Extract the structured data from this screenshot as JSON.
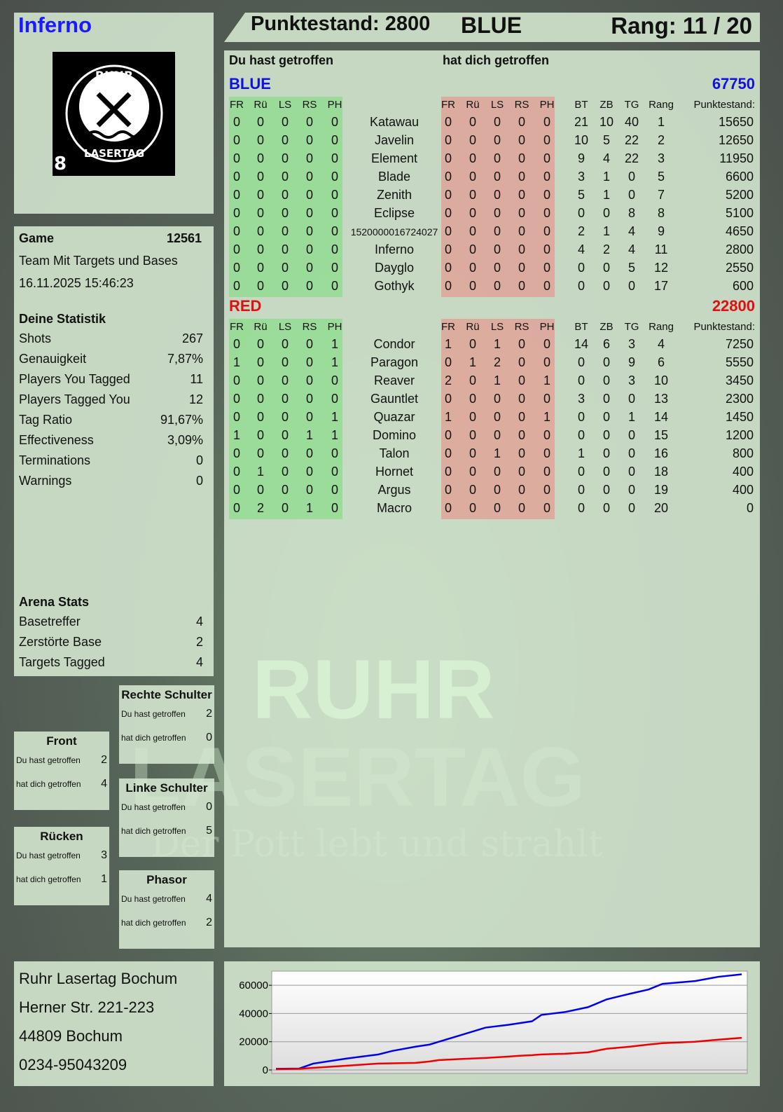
{
  "player": {
    "name": "Inferno",
    "score_label": "Punktestand: 2800",
    "team": "BLUE",
    "rank_label": "Rang: 11 / 20",
    "logo_number": "8",
    "logo_text": [
      "RUHR",
      "LASERTAG"
    ]
  },
  "watermark": {
    "line1": "RUHR",
    "line2": "LASERTAG",
    "slogan": "Der Pott lebt und strahlt"
  },
  "table": {
    "heading_you_hit": "Du hast getroffen",
    "heading_hit_you": "hat dich getroffen",
    "cols_hit": [
      "FR",
      "Rü",
      "LS",
      "RS",
      "PH"
    ],
    "cols_stats": [
      "BT",
      "ZB",
      "TG",
      "Rang",
      "Punktestand:"
    ],
    "teams": [
      {
        "name": "BLUE",
        "total": "67750",
        "color": "#1010e0",
        "rows": [
          {
            "you": [
              0,
              0,
              0,
              0,
              0
            ],
            "name": "Katawau",
            "them": [
              0,
              0,
              0,
              0,
              0
            ],
            "stats": [
              21,
              10,
              40,
              1,
              15650
            ]
          },
          {
            "you": [
              0,
              0,
              0,
              0,
              0
            ],
            "name": "Javelin",
            "them": [
              0,
              0,
              0,
              0,
              0
            ],
            "stats": [
              10,
              5,
              22,
              2,
              12650
            ]
          },
          {
            "you": [
              0,
              0,
              0,
              0,
              0
            ],
            "name": "Element",
            "them": [
              0,
              0,
              0,
              0,
              0
            ],
            "stats": [
              9,
              4,
              22,
              3,
              11950
            ]
          },
          {
            "you": [
              0,
              0,
              0,
              0,
              0
            ],
            "name": "Blade",
            "them": [
              0,
              0,
              0,
              0,
              0
            ],
            "stats": [
              3,
              1,
              0,
              5,
              6600
            ]
          },
          {
            "you": [
              0,
              0,
              0,
              0,
              0
            ],
            "name": "Zenith",
            "them": [
              0,
              0,
              0,
              0,
              0
            ],
            "stats": [
              5,
              1,
              0,
              7,
              5200
            ]
          },
          {
            "you": [
              0,
              0,
              0,
              0,
              0
            ],
            "name": "Eclipse",
            "them": [
              0,
              0,
              0,
              0,
              0
            ],
            "stats": [
              0,
              0,
              8,
              8,
              5100
            ]
          },
          {
            "you": [
              0,
              0,
              0,
              0,
              0
            ],
            "name": "1520000016724027",
            "them": [
              0,
              0,
              0,
              0,
              0
            ],
            "stats": [
              2,
              1,
              4,
              9,
              4650
            ]
          },
          {
            "you": [
              0,
              0,
              0,
              0,
              0
            ],
            "name": "Inferno",
            "them": [
              0,
              0,
              0,
              0,
              0
            ],
            "stats": [
              4,
              2,
              4,
              11,
              2800
            ]
          },
          {
            "you": [
              0,
              0,
              0,
              0,
              0
            ],
            "name": "Dayglo",
            "them": [
              0,
              0,
              0,
              0,
              0
            ],
            "stats": [
              0,
              0,
              5,
              12,
              2550
            ]
          },
          {
            "you": [
              0,
              0,
              0,
              0,
              0
            ],
            "name": "Gothyk",
            "them": [
              0,
              0,
              0,
              0,
              0
            ],
            "stats": [
              0,
              0,
              0,
              17,
              600
            ]
          }
        ]
      },
      {
        "name": "RED",
        "total": "22800",
        "color": "#e01010",
        "rows": [
          {
            "you": [
              0,
              0,
              0,
              0,
              1
            ],
            "name": "Condor",
            "them": [
              1,
              0,
              1,
              0,
              0
            ],
            "stats": [
              14,
              6,
              3,
              4,
              7250
            ]
          },
          {
            "you": [
              1,
              0,
              0,
              0,
              1
            ],
            "name": "Paragon",
            "them": [
              0,
              1,
              2,
              0,
              0
            ],
            "stats": [
              0,
              0,
              9,
              6,
              5550
            ]
          },
          {
            "you": [
              0,
              0,
              0,
              0,
              0
            ],
            "name": "Reaver",
            "them": [
              2,
              0,
              1,
              0,
              1
            ],
            "stats": [
              0,
              0,
              3,
              10,
              3450
            ]
          },
          {
            "you": [
              0,
              0,
              0,
              0,
              0
            ],
            "name": "Gauntlet",
            "them": [
              0,
              0,
              0,
              0,
              0
            ],
            "stats": [
              3,
              0,
              0,
              13,
              2300
            ]
          },
          {
            "you": [
              0,
              0,
              0,
              0,
              1
            ],
            "name": "Quazar",
            "them": [
              1,
              0,
              0,
              0,
              1
            ],
            "stats": [
              0,
              0,
              1,
              14,
              1450
            ]
          },
          {
            "you": [
              1,
              0,
              0,
              1,
              1
            ],
            "name": "Domino",
            "them": [
              0,
              0,
              0,
              0,
              0
            ],
            "stats": [
              0,
              0,
              0,
              15,
              1200
            ]
          },
          {
            "you": [
              0,
              0,
              0,
              0,
              0
            ],
            "name": "Talon",
            "them": [
              0,
              0,
              1,
              0,
              0
            ],
            "stats": [
              1,
              0,
              0,
              16,
              800
            ]
          },
          {
            "you": [
              0,
              1,
              0,
              0,
              0
            ],
            "name": "Hornet",
            "them": [
              0,
              0,
              0,
              0,
              0
            ],
            "stats": [
              0,
              0,
              0,
              18,
              400
            ]
          },
          {
            "you": [
              0,
              0,
              0,
              0,
              0
            ],
            "name": "Argus",
            "them": [
              0,
              0,
              0,
              0,
              0
            ],
            "stats": [
              0,
              0,
              0,
              19,
              400
            ]
          },
          {
            "you": [
              0,
              2,
              0,
              1,
              0
            ],
            "name": "Macro",
            "them": [
              0,
              0,
              0,
              0,
              0
            ],
            "stats": [
              0,
              0,
              0,
              20,
              0
            ]
          }
        ]
      }
    ]
  },
  "game": {
    "label": "Game",
    "id": "12561",
    "mode": "Team Mit Targets und Bases",
    "datetime": "16.11.2025 15:46:23"
  },
  "stats": {
    "heading": "Deine Statistik",
    "items": [
      {
        "label": "Shots",
        "value": "267"
      },
      {
        "label": "Genauigkeit",
        "value": "7,87%"
      },
      {
        "label": "Players You Tagged",
        "value": "11"
      },
      {
        "label": "Players Tagged You",
        "value": "12"
      },
      {
        "label": "Tag Ratio",
        "value": "91,67%"
      },
      {
        "label": "Effectiveness",
        "value": "3,09%"
      },
      {
        "label": "Terminations",
        "value": "0"
      },
      {
        "label": "Warnings",
        "value": "0"
      }
    ]
  },
  "arena": {
    "heading": "Arena Stats",
    "items": [
      {
        "label": "Basetreffer",
        "value": "4"
      },
      {
        "label": "Zerstörte Base",
        "value": "2"
      },
      {
        "label": "Targets Tagged",
        "value": "4"
      }
    ]
  },
  "zones": [
    {
      "title": "Rechte Schulter",
      "you_label": "Du hast getroffen",
      "you": "2",
      "them_label": "hat dich getroffen",
      "them": "0"
    },
    {
      "title": "Front",
      "you_label": "Du hast getroffen",
      "you": "2",
      "them_label": "hat dich getroffen",
      "them": "4"
    },
    {
      "title": "Linke Schulter",
      "you_label": "Du hast getroffen",
      "you": "0",
      "them_label": "hat dich getroffen",
      "them": "5"
    },
    {
      "title": "Rücken",
      "you_label": "Du hast getroffen",
      "you": "3",
      "them_label": "hat dich getroffen",
      "them": "1"
    },
    {
      "title": "Phasor",
      "you_label": "Du hast getroffen",
      "you": "4",
      "them_label": "hat dich getroffen",
      "them": "2"
    }
  ],
  "address": {
    "lines": [
      "Ruhr Lasertag Bochum",
      "Herner Str. 221-223",
      "44809 Bochum",
      "0234-95043209"
    ]
  },
  "chart_data": {
    "type": "line",
    "ylim": [
      0,
      70000
    ],
    "yticks": [
      0,
      20000,
      40000,
      60000
    ],
    "ytick_labels": [
      "0",
      "20000",
      "40000",
      "60000"
    ],
    "grid": true,
    "x": [
      0,
      0.05,
      0.08,
      0.15,
      0.22,
      0.25,
      0.3,
      0.33,
      0.35,
      0.4,
      0.45,
      0.5,
      0.52,
      0.55,
      0.57,
      0.62,
      0.67,
      0.71,
      0.76,
      0.8,
      0.83,
      0.9,
      0.95,
      1
    ],
    "series": [
      {
        "color": "#0000ee",
        "values": [
          800,
          1000,
          4500,
          8000,
          11000,
          13500,
          16500,
          18000,
          20000,
          25000,
          30000,
          32000,
          33000,
          34500,
          39000,
          41000,
          44500,
          50000,
          54000,
          57000,
          61000,
          63000,
          66000,
          67750
        ]
      },
      {
        "color": "#ee0000",
        "values": [
          500,
          800,
          1500,
          3000,
          4500,
          4700,
          5000,
          6000,
          7000,
          7800,
          8500,
          9500,
          10000,
          10500,
          11000,
          11500,
          12500,
          15000,
          16500,
          18000,
          19000,
          20000,
          21500,
          22800
        ]
      }
    ]
  }
}
